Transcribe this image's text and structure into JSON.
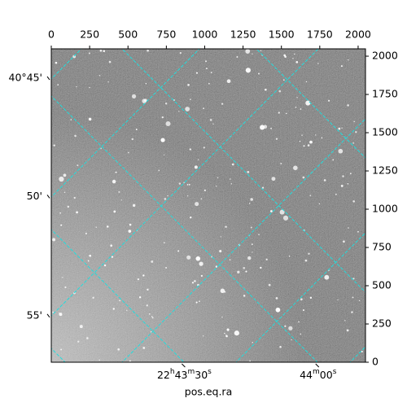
{
  "chart_data": {
    "type": "image",
    "xlabel": "pos.eq.ra",
    "xlim": [
      0,
      2048
    ],
    "ylim": [
      0,
      2048
    ],
    "xticks": [
      0,
      250,
      500,
      750,
      1000,
      1250,
      1500,
      1750,
      2000
    ],
    "yticks": [
      0,
      250,
      500,
      750,
      1000,
      1250,
      1500,
      1750,
      2000
    ],
    "ra_ticks": [
      {
        "value": 867,
        "label": "22h43m30s"
      },
      {
        "value": 1739,
        "label": "44m00s"
      }
    ],
    "dec_ticks": [
      {
        "value": 1856,
        "label": "40°45'"
      },
      {
        "value": 1083,
        "label": "50'"
      },
      {
        "value": 304,
        "label": "55'"
      }
    ]
  }
}
